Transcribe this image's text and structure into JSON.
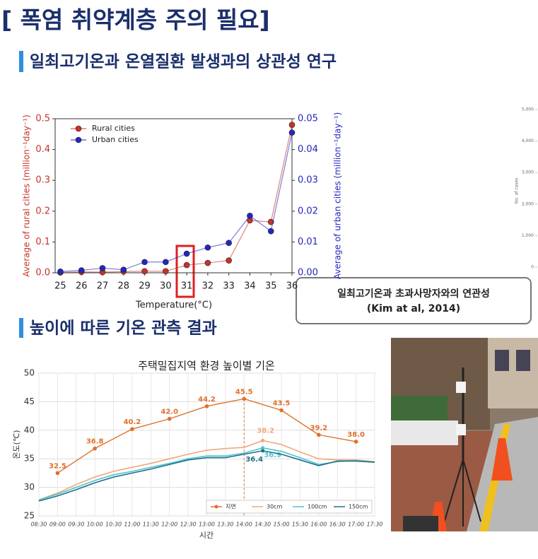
{
  "header": {
    "title": "[ 폭염 취약계층 주의 필요]"
  },
  "sections": [
    {
      "heading": "일최고기온과 온열질환 발생과의 상관성 연구"
    },
    {
      "heading": "높이에 따른 기온 관측 결과"
    }
  ],
  "callout": {
    "lines": [
      "일최고기온과 초과사망자와의 연관성",
      "(Kim at al, 2014)"
    ]
  },
  "chart_data": [
    {
      "type": "line",
      "xlabel": "Temperature(°C)",
      "ylabel": "Average of rural cities (million⁻¹day⁻¹)",
      "y2label": "Average of urban cities (million⁻¹day⁻¹)",
      "x": [
        25,
        26,
        27,
        28,
        29,
        30,
        31,
        32,
        33,
        34,
        35,
        36
      ],
      "xlim": [
        24.75,
        36
      ],
      "xticks": [
        25,
        26,
        27,
        28,
        29,
        30,
        31,
        32,
        33,
        34,
        35,
        36
      ],
      "ylim": [
        0,
        0.5
      ],
      "yticks": [
        {
          "value": 0,
          "label": "0.0"
        },
        0.1,
        0.2,
        0.3,
        0.4,
        0.5
      ],
      "y2lim": [
        0,
        0.05
      ],
      "y2ticks": [
        {
          "value": 0,
          "label": "0.00"
        },
        {
          "value": 0.01,
          "label": "0.01"
        },
        {
          "value": 0.02,
          "label": "0.02"
        },
        {
          "value": 0.03,
          "label": "0.03"
        },
        {
          "value": 0.04,
          "label": "0.04"
        },
        {
          "value": 0.05,
          "label": "0.05"
        }
      ],
      "legend": "upper left",
      "series": [
        {
          "name": "Rural cities",
          "color": "#c8322a",
          "values": [
            0.001,
            0.003,
            0.002,
            0.004,
            0.005,
            0.005,
            0.025,
            0.032,
            0.04,
            0.17,
            0.165,
            0.48
          ]
        },
        {
          "name": "Urban cities",
          "color": "#2626c0",
          "axis": "y2",
          "values": [
            0.0004,
            0.0008,
            0.0015,
            0.001,
            0.0035,
            0.0035,
            0.0062,
            0.0082,
            0.0097,
            0.0185,
            0.0135,
            0.0455
          ]
        }
      ]
    },
    {
      "type": "line",
      "title": "주택밀집지역 환경 높이별 기온",
      "xlabel": "시간",
      "ylabel": "온도(℃)",
      "x": [
        "08:30",
        "09:00",
        "09:30",
        "10:00",
        "10:30",
        "11:00",
        "11:30",
        "12:00",
        "12:30",
        "13:00",
        "13:30",
        "14:00",
        "14:30",
        "15:00",
        "15:30",
        "16:00",
        "16:30",
        "17:00",
        "17:30"
      ],
      "ylim": [
        25,
        50
      ],
      "yticks": [
        25,
        30,
        35,
        40,
        45,
        50
      ],
      "grid": true,
      "legend": "lower right",
      "series": [
        {
          "name": "지면",
          "color": "#e0702a",
          "x": [
            "09:00",
            "10:00",
            "11:00",
            "12:00",
            "13:00",
            "14:00",
            "15:00",
            "16:00",
            "17:00"
          ],
          "values": [
            32.5,
            36.8,
            40.2,
            42.0,
            44.2,
            45.5,
            43.5,
            39.2,
            38.0
          ],
          "value_labels": [
            "32.5",
            "36.8",
            "40.2",
            "42.0",
            "44.2",
            "45.5",
            "43.5",
            "39.2",
            "38.0"
          ]
        },
        {
          "name": "30cm",
          "color": "#f0a87a",
          "values": [
            27.8,
            29.0,
            30.5,
            31.8,
            32.8,
            33.5,
            34.2,
            35.0,
            35.8,
            36.5,
            36.8,
            37.0,
            38.2,
            37.5,
            36.2,
            35.0,
            34.8,
            34.8,
            34.5
          ],
          "value_labels": [
            null,
            null,
            null,
            null,
            null,
            null,
            null,
            null,
            null,
            null,
            null,
            null,
            "38.2",
            null,
            null,
            null,
            null,
            null,
            null
          ]
        },
        {
          "name": "100cm",
          "color": "#4fc3d0",
          "values": [
            27.8,
            28.8,
            30.0,
            31.2,
            32.2,
            32.8,
            33.5,
            34.2,
            35.0,
            35.5,
            35.5,
            36.0,
            36.9,
            36.3,
            35.2,
            34.0,
            34.5,
            34.7,
            34.4
          ],
          "value_labels": [
            null,
            null,
            null,
            null,
            null,
            null,
            null,
            null,
            null,
            null,
            null,
            null,
            "36.9",
            null,
            null,
            null,
            null,
            null,
            null
          ]
        },
        {
          "name": "150cm",
          "color": "#1f6f8b",
          "values": [
            27.6,
            28.5,
            29.6,
            30.8,
            31.8,
            32.5,
            33.2,
            34.0,
            34.8,
            35.2,
            35.2,
            35.8,
            36.4,
            35.8,
            34.8,
            33.8,
            34.6,
            34.6,
            34.4
          ],
          "value_labels": [
            null,
            null,
            null,
            null,
            null,
            null,
            null,
            null,
            null,
            null,
            null,
            null,
            "36.4",
            null,
            null,
            null,
            null,
            null,
            null
          ]
        }
      ]
    },
    {
      "type": "bar",
      "ylabel": "No. of cases",
      "ylim": [
        0,
        5000
      ],
      "yticks": [
        0,
        {
          "value": 1000,
          "label": "1,000"
        },
        {
          "value": 2000,
          "label": "2,000"
        },
        {
          "value": 3000,
          "label": "3,000"
        },
        {
          "value": 4000,
          "label": "4,000"
        },
        {
          "value": 5000,
          "label": "5,000"
        }
      ]
    }
  ]
}
